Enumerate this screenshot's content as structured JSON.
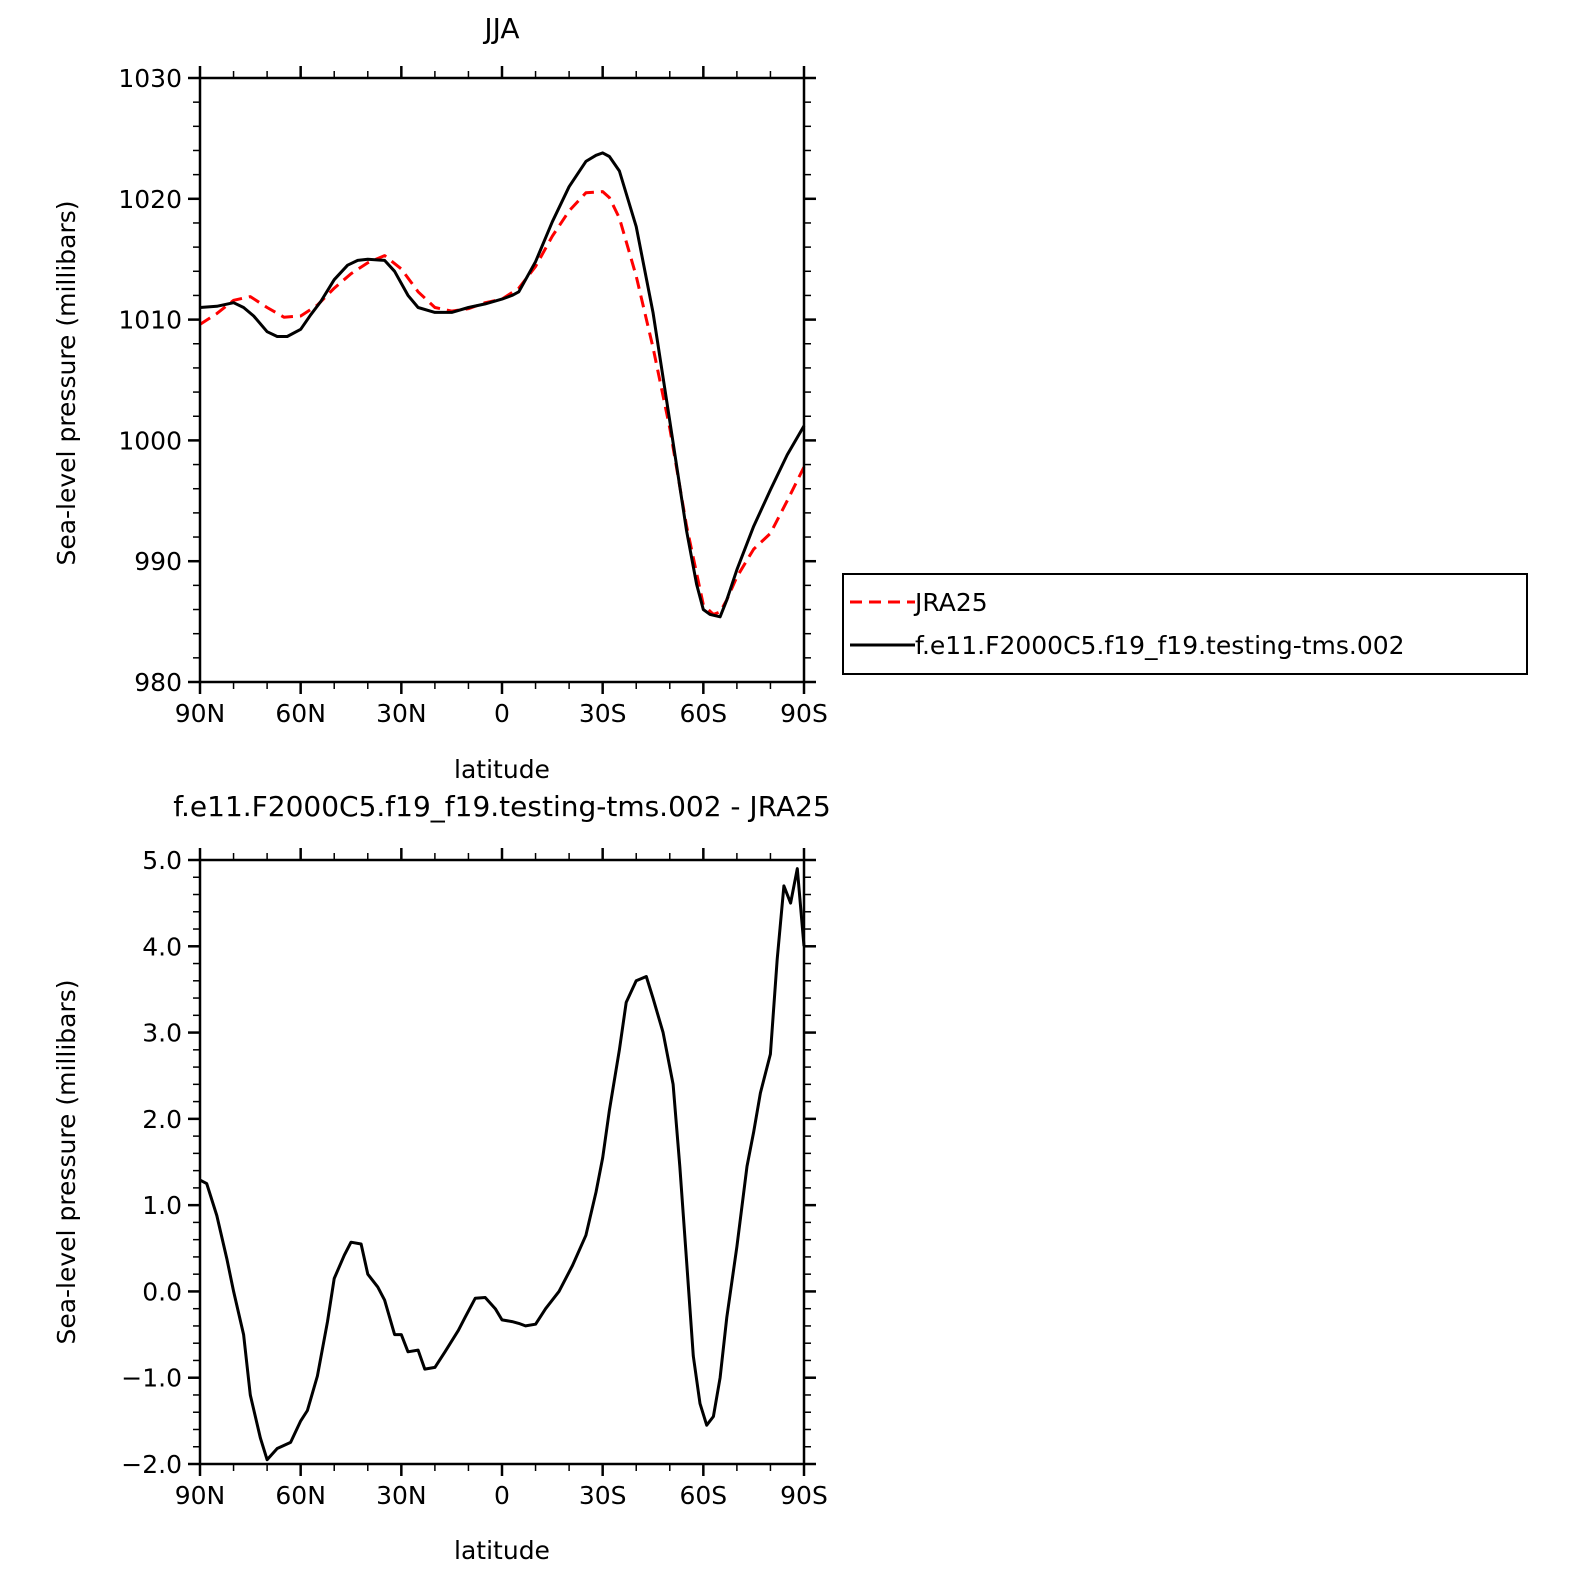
{
  "colors": {
    "jra25": "#ff0000",
    "model": "#000000",
    "axes": "#000000",
    "background": "#ffffff"
  },
  "chart_data": [
    {
      "type": "line",
      "title": "JJA",
      "xlabel": "latitude",
      "ylabel": "Sea-level pressure (millibars)",
      "xlim": [
        -90,
        90
      ],
      "ylim": [
        980,
        1030
      ],
      "xticks": [
        -90,
        -60,
        -30,
        0,
        30,
        60,
        90
      ],
      "xtick_labels": [
        "90N",
        "60N",
        "30N",
        "0",
        "30S",
        "60S",
        "90S"
      ],
      "yticks": [
        980,
        990,
        1000,
        1010,
        1020,
        1030
      ],
      "ytick_labels": [
        "980",
        "990",
        "1000",
        "1010",
        "1020",
        "1030"
      ],
      "grid": false,
      "legend_position": "right, outside plot",
      "series": [
        {
          "name": "JRA25",
          "color": "#ff0000",
          "style": "dashed",
          "x": [
            -90,
            -85,
            -80,
            -75,
            -70,
            -65,
            -60,
            -55,
            -50,
            -45,
            -40,
            -35,
            -30,
            -25,
            -20,
            -15,
            -10,
            -5,
            0,
            5,
            10,
            15,
            20,
            25,
            30,
            32,
            35,
            40,
            45,
            50,
            55,
            60,
            63,
            65,
            67,
            70,
            75,
            80,
            85,
            90
          ],
          "y": [
            1009.6,
            1010.5,
            1011.6,
            1011.9,
            1011.0,
            1010.2,
            1010.3,
            1011.2,
            1012.6,
            1013.8,
            1014.7,
            1015.3,
            1014.2,
            1012.3,
            1011.0,
            1010.7,
            1010.9,
            1011.4,
            1011.7,
            1012.6,
            1014.4,
            1016.9,
            1019.0,
            1020.5,
            1020.6,
            1020.1,
            1018.4,
            1013.6,
            1007.7,
            1001.0,
            992.9,
            986.4,
            985.6,
            985.8,
            986.8,
            988.7,
            991.0,
            992.3,
            995.0,
            997.8
          ]
        },
        {
          "name": "f.e11.F2000C5.f19_f19.testing-tms.002",
          "color": "#000000",
          "style": "solid",
          "x": [
            -90,
            -85,
            -80,
            -77,
            -74,
            -70,
            -67,
            -64,
            -60,
            -57,
            -54,
            -50,
            -46,
            -43,
            -40,
            -35,
            -32,
            -28,
            -25,
            -20,
            -15,
            -10,
            -5,
            0,
            3,
            5,
            10,
            15,
            20,
            25,
            28,
            30,
            32,
            35,
            40,
            45,
            50,
            55,
            58,
            60,
            62,
            65,
            67,
            70,
            75,
            80,
            85,
            90
          ],
          "y": [
            1011.0,
            1011.1,
            1011.4,
            1011.0,
            1010.3,
            1009.0,
            1008.6,
            1008.6,
            1009.2,
            1010.4,
            1011.5,
            1013.3,
            1014.5,
            1014.9,
            1015.0,
            1014.9,
            1014.0,
            1012.0,
            1011.0,
            1010.6,
            1010.6,
            1011.0,
            1011.3,
            1011.7,
            1012.0,
            1012.3,
            1014.8,
            1018.1,
            1021.0,
            1023.1,
            1023.6,
            1023.8,
            1023.5,
            1022.3,
            1017.7,
            1010.6,
            1001.6,
            992.5,
            988.1,
            986.0,
            985.6,
            985.4,
            986.8,
            989.3,
            992.9,
            995.9,
            998.8,
            1001.2
          ]
        }
      ]
    },
    {
      "type": "line",
      "title": "f.e11.F2000C5.f19_f19.testing-tms.002 - JRA25",
      "xlabel": "latitude",
      "ylabel": "Sea-level pressure (millibars)",
      "xlim": [
        -90,
        90
      ],
      "ylim": [
        -2.0,
        5.0
      ],
      "xticks": [
        -90,
        -60,
        -30,
        0,
        30,
        60,
        90
      ],
      "xtick_labels": [
        "90N",
        "60N",
        "30N",
        "0",
        "30S",
        "60S",
        "90S"
      ],
      "yticks": [
        -2.0,
        -1.0,
        0.0,
        1.0,
        2.0,
        3.0,
        4.0,
        5.0
      ],
      "ytick_labels": [
        "-2.0",
        "-1.0",
        "0.0",
        "1.0",
        "2.0",
        "3.0",
        "4.0",
        "5.0"
      ],
      "grid": false,
      "series": [
        {
          "color": "#000000",
          "style": "solid",
          "x": [
            -90,
            -88,
            -85,
            -82,
            -80,
            -77,
            -75,
            -72,
            -70,
            -67,
            -63,
            -60,
            -58,
            -55,
            -52,
            -50,
            -47,
            -45,
            -42,
            -40,
            -37,
            -35,
            -32,
            -30,
            -28,
            -25,
            -23,
            -20,
            -17,
            -13,
            -11,
            -8,
            -5,
            -2,
            0,
            3,
            5,
            7,
            10,
            13,
            17,
            21,
            25,
            28,
            30,
            32,
            35,
            37,
            40,
            43,
            45,
            48,
            51,
            53,
            55,
            57,
            59,
            61,
            63,
            65,
            67,
            70,
            73,
            75,
            77,
            80,
            82,
            84,
            86,
            88,
            90
          ],
          "y": [
            1.29,
            1.25,
            0.88,
            0.38,
            0.0,
            -0.5,
            -1.2,
            -1.7,
            -1.95,
            -1.82,
            -1.75,
            -1.5,
            -1.38,
            -0.98,
            -0.35,
            0.15,
            0.42,
            0.57,
            0.55,
            0.2,
            0.05,
            -0.1,
            -0.5,
            -0.5,
            -0.7,
            -0.68,
            -0.9,
            -0.88,
            -0.7,
            -0.45,
            -0.3,
            -0.08,
            -0.07,
            -0.2,
            -0.33,
            -0.35,
            -0.37,
            -0.4,
            -0.38,
            -0.2,
            0.0,
            0.3,
            0.65,
            1.15,
            1.55,
            2.1,
            2.8,
            3.35,
            3.6,
            3.65,
            3.4,
            3.0,
            2.4,
            1.45,
            0.35,
            -0.75,
            -1.3,
            -1.55,
            -1.45,
            -1.0,
            -0.3,
            0.52,
            1.45,
            1.85,
            2.3,
            2.75,
            3.85,
            4.7,
            4.5,
            4.9,
            4.0
          ]
        }
      ]
    }
  ]
}
